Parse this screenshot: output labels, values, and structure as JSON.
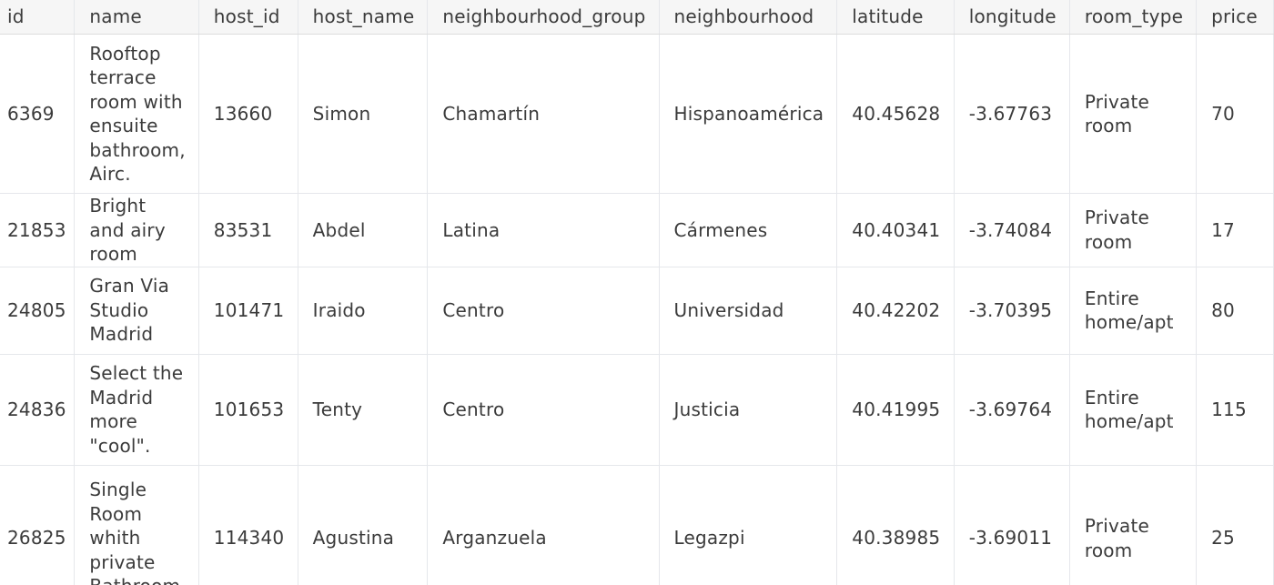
{
  "table": {
    "columns": [
      "id",
      "name",
      "host_id",
      "host_name",
      "neighbourhood_group",
      "neighbourhood",
      "latitude",
      "longitude",
      "room_type",
      "price"
    ],
    "rows": [
      {
        "id": "6369",
        "name": "Rooftop terrace room with ensuite bathroom, Airc.",
        "host_id": "13660",
        "host_name": "Simon",
        "neighbourhood_group": "Chamartín",
        "neighbourhood": "Hispanoamérica",
        "latitude": "40.45628",
        "longitude": "-3.67763",
        "room_type": "Private room",
        "price": "70"
      },
      {
        "id": "21853",
        "name": "Bright and airy room",
        "host_id": "83531",
        "host_name": "Abdel",
        "neighbourhood_group": "Latina",
        "neighbourhood": "Cármenes",
        "latitude": "40.40341",
        "longitude": "-3.74084",
        "room_type": "Private room",
        "price": "17"
      },
      {
        "id": "24805",
        "name": "Gran Via Studio Madrid",
        "host_id": "101471",
        "host_name": "Iraido",
        "neighbourhood_group": "Centro",
        "neighbourhood": "Universidad",
        "latitude": "40.42202",
        "longitude": "-3.70395",
        "room_type": "Entire home/apt",
        "price": "80"
      },
      {
        "id": "24836",
        "name": "Select the Madrid more \"cool\".",
        "host_id": "101653",
        "host_name": "Tenty",
        "neighbourhood_group": "Centro",
        "neighbourhood": "Justicia",
        "latitude": "40.41995",
        "longitude": "-3.69764",
        "room_type": "Entire home/apt",
        "price": "115"
      },
      {
        "id": "26825",
        "name": "Single Room whith private Bathroom",
        "host_id": "114340",
        "host_name": "Agustina",
        "neighbourhood_group": "Arganzuela",
        "neighbourhood": "Legazpi",
        "latitude": "40.38985",
        "longitude": "-3.69011",
        "room_type": "Private room",
        "price": "25"
      }
    ]
  }
}
